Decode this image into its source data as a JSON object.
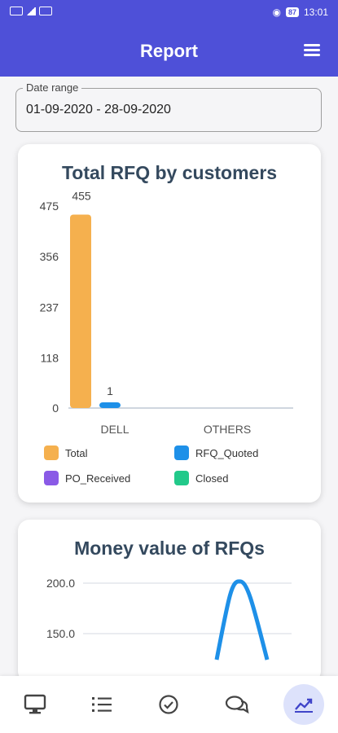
{
  "status_bar": {
    "time": "13:01",
    "battery": "87"
  },
  "header": {
    "title": "Report",
    "menu_icon": "hamburger-menu-icon"
  },
  "date_range": {
    "label": "Date range",
    "value": "01-09-2020 - 28-09-2020"
  },
  "charts": {
    "rfq": {
      "title": "Total RFQ by customers"
    },
    "money": {
      "title": "Money value of RFQs"
    }
  },
  "chart_data": [
    {
      "type": "bar",
      "title": "Total RFQ by customers",
      "categories": [
        "DELL",
        "OTHERS"
      ],
      "series": [
        {
          "name": "Total",
          "values": [
            455,
            0
          ],
          "color": "#f5b04e"
        },
        {
          "name": "RFQ_Quoted",
          "values": [
            1,
            0
          ],
          "color": "#1e90e8"
        },
        {
          "name": "PO_Received",
          "values": [
            0,
            0
          ],
          "color": "#8a5ae6"
        },
        {
          "name": "Closed",
          "values": [
            0,
            0
          ],
          "color": "#22c98a"
        }
      ],
      "y_ticks": [
        "0",
        "118",
        "237",
        "356",
        "475"
      ],
      "ylim": [
        0,
        475
      ],
      "data_labels": [
        "455",
        "1"
      ],
      "legend_position": "bottom"
    },
    {
      "type": "line",
      "title": "Money value of RFQs",
      "y_ticks_visible": [
        "200.0",
        "150.0"
      ],
      "peak_value": 200,
      "series_color": "#1e90e8"
    }
  ],
  "bottom_nav": [
    {
      "name": "desktop-icon"
    },
    {
      "name": "list-icon"
    },
    {
      "name": "check-circle-icon"
    },
    {
      "name": "chat-icon"
    },
    {
      "name": "chart-trend-icon",
      "active": true
    }
  ]
}
